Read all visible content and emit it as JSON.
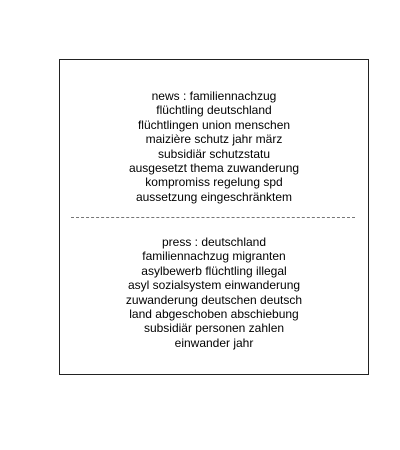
{
  "news": {
    "heading": "news : familiennachzug",
    "terms": [
      "flüchtling deutschland",
      "flüchtlingen union menschen",
      "maizière schutz jahr märz",
      "subsidiär schutzstatu",
      "ausgesetzt thema zuwanderung",
      "kompromiss regelung spd",
      "aussetzung eingeschränktem"
    ]
  },
  "press": {
    "heading": "press : deutschland",
    "terms": [
      "familiennachzug migranten",
      "asylbewerb flüchtling illegal",
      "asyl sozialsystem einwanderung",
      "zuwanderung deutschen deutsch",
      "land abgeschoben abschiebung",
      "subsidiär personen zahlen",
      "einwander jahr"
    ]
  }
}
